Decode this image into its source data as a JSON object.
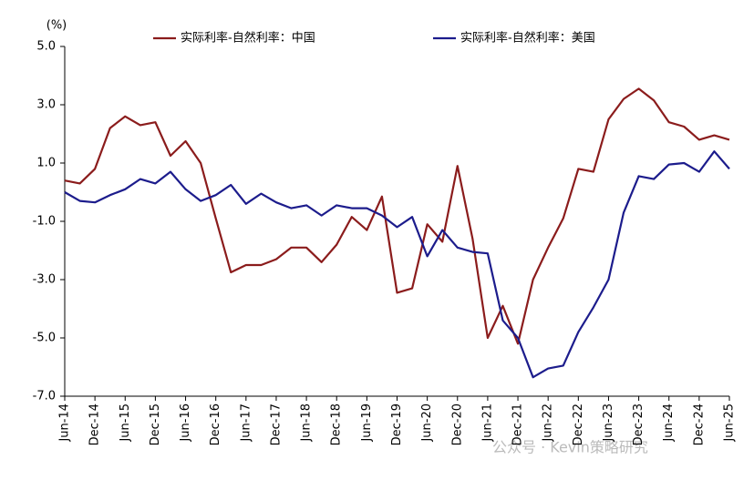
{
  "chart_data": {
    "type": "line",
    "y_unit": "(%)",
    "categories": [
      "Jun-14",
      null,
      "Dec-14",
      null,
      "Jun-15",
      null,
      "Dec-15",
      null,
      "Jun-16",
      null,
      "Dec-16",
      null,
      "Jun-17",
      null,
      "Dec-17",
      null,
      "Jun-18",
      null,
      "Dec-18",
      null,
      "Jun-19",
      null,
      "Dec-19",
      null,
      "Jun-20",
      null,
      "Dec-20",
      null,
      "Jun-21",
      null,
      "Dec-21",
      null,
      "Jun-22",
      null,
      "Dec-22",
      null,
      "Jun-23",
      null,
      "Dec-23",
      null,
      "Jun-24",
      null,
      "Dec-24",
      null,
      "Jun-25"
    ],
    "series": [
      {
        "name": "实际利率-自然利率：中国",
        "color": "#8b1c1c",
        "values": [
          0.4,
          0.3,
          0.8,
          2.2,
          2.6,
          2.3,
          2.4,
          1.25,
          1.75,
          1.0,
          -0.9,
          -2.75,
          -2.5,
          -2.5,
          -2.3,
          -1.9,
          -1.9,
          -2.4,
          -1.8,
          -0.85,
          -1.3,
          -0.15,
          -3.45,
          -3.3,
          -1.1,
          -1.7,
          0.9,
          -1.6,
          -5.0,
          -3.9,
          -5.2,
          -3.0,
          -1.9,
          -0.9,
          0.8,
          0.7,
          2.5,
          3.2,
          3.55,
          3.15,
          2.4,
          2.25,
          1.8,
          1.95,
          1.8
        ]
      },
      {
        "name": "实际利率-自然利率：美国",
        "color": "#1c1c8c",
        "values": [
          0.0,
          -0.3,
          -0.35,
          -0.1,
          0.1,
          0.45,
          0.3,
          0.7,
          0.1,
          -0.3,
          -0.1,
          0.25,
          -0.4,
          -0.05,
          -0.35,
          -0.55,
          -0.45,
          -0.8,
          -0.45,
          -0.55,
          -0.55,
          -0.8,
          -1.2,
          -0.85,
          -2.2,
          -1.3,
          -1.9,
          -2.05,
          -2.1,
          -4.4,
          -5.0,
          -6.35,
          -6.05,
          -5.95,
          -4.8,
          -3.95,
          -3.0,
          -0.7,
          0.55,
          0.45,
          0.95,
          1.0,
          0.7,
          1.4,
          0.8
        ]
      }
    ],
    "ylim": [
      -7,
      5
    ],
    "yticks": [
      {
        "value": 5,
        "label": "5.0"
      },
      {
        "value": 3,
        "label": "3.0"
      },
      {
        "value": 1,
        "label": "1.0"
      },
      {
        "value": -1,
        "label": "-1.0"
      },
      {
        "value": -3,
        "label": "-3.0"
      },
      {
        "value": -5,
        "label": "-5.0"
      },
      {
        "value": -7,
        "label": "-7.0"
      }
    ],
    "grid": false,
    "legend": "top",
    "watermark": "公众号 · Kevin策略研究"
  }
}
